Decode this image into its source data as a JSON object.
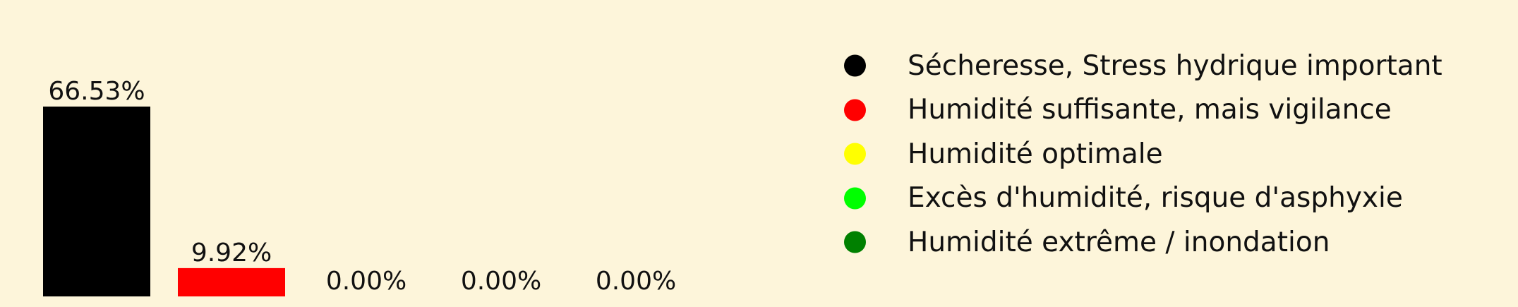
{
  "background": "#fdf5da",
  "chart_data": {
    "type": "bar",
    "categories": [
      "Sécheresse, Stress hydrique important",
      "Humidité suffisante, mais vigilance",
      "Humidité optimale",
      "Excès d'humidité, risque d'asphyxie",
      "Humidité extrême / inondation"
    ],
    "values": [
      66.53,
      9.92,
      0.0,
      0.0,
      0.0
    ],
    "value_labels": [
      "66.53%",
      "9.92%",
      "0.00%",
      "0.00%",
      "0.00%"
    ],
    "colors": [
      "#000000",
      "#ff0000",
      "#ffff00",
      "#00ff00",
      "#008000"
    ],
    "ylim": [
      0,
      72
    ],
    "xlabel": "",
    "ylabel": "",
    "title": "",
    "grid": false,
    "legend_position": "right",
    "axes_visible": false
  }
}
